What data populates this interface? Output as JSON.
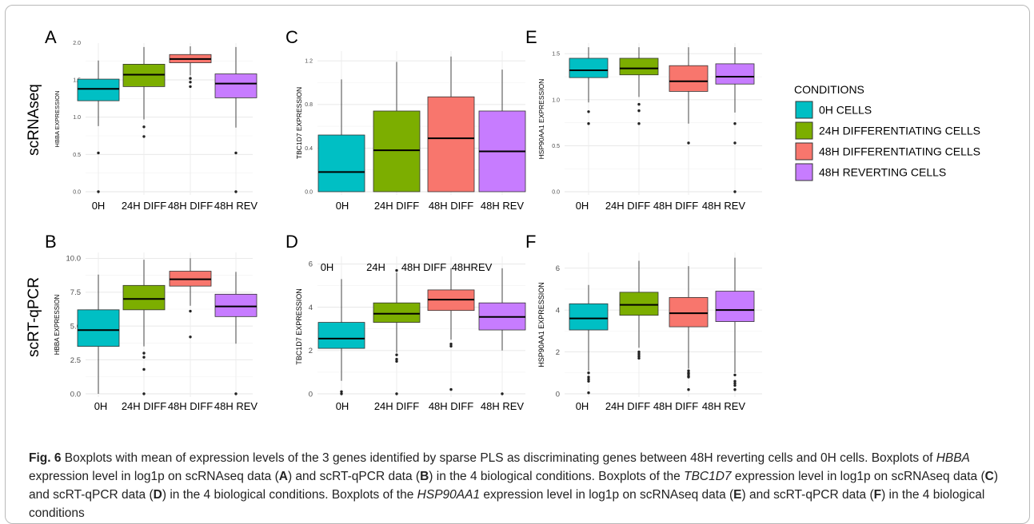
{
  "colors": {
    "0H": "#00BFC4",
    "24H": "#7CAE00",
    "48H_DIFF": "#F8766D",
    "48H_REV": "#C77CFF"
  },
  "row_labels": [
    "scRNAseq",
    "scRT-qPCR"
  ],
  "legend": {
    "title": "CONDITIONS",
    "items": [
      "0H CELLS",
      "24H DIFFERENTIATING CELLS",
      "48H DIFFERENTIATING CELLS",
      "48H REVERTING CELLS"
    ]
  },
  "chart_data": [
    {
      "type": "boxplot",
      "panel": "A",
      "ylabel": "HBBA EXPRESSION",
      "ylim": [
        0,
        1.95
      ],
      "yticks": [
        "0.0",
        "0.5",
        "1.0",
        "1.5",
        "2.0"
      ],
      "ytick_values": [
        0,
        0.5,
        1.0,
        1.5,
        2.0
      ],
      "categories": [
        "0H",
        "24H DIFF",
        "48H DIFF",
        "48H REV"
      ],
      "boxes": [
        {
          "min": 0.88,
          "q1": 1.22,
          "median": 1.38,
          "q3": 1.51,
          "max": 1.76,
          "outliers": [
            0.52,
            0.0
          ]
        },
        {
          "min": 0.97,
          "q1": 1.41,
          "median": 1.57,
          "q3": 1.71,
          "max": 1.94,
          "outliers": [
            0.87,
            0.74
          ]
        },
        {
          "min": 1.56,
          "q1": 1.73,
          "median": 1.78,
          "q3": 1.84,
          "max": 1.95,
          "outliers": [
            1.52,
            1.47,
            1.41
          ]
        },
        {
          "min": 0.86,
          "q1": 1.26,
          "median": 1.45,
          "q3": 1.58,
          "max": 1.94,
          "outliers": [
            0.52,
            0.0
          ]
        }
      ]
    },
    {
      "type": "boxplot",
      "panel": "C",
      "ylabel": "TBC1D7 EXPRESSION",
      "ylim": [
        0,
        1.26
      ],
      "yticks": [
        "0.0",
        "0.4",
        "0.8",
        "1.2"
      ],
      "ytick_values": [
        0,
        0.4,
        0.8,
        1.2
      ],
      "categories": [
        "0H",
        "24H DIFF",
        "48H DIFF",
        "48H REV"
      ],
      "boxes": [
        {
          "min": 0.0,
          "q1": 0.0,
          "median": 0.18,
          "q3": 0.52,
          "max": 1.03,
          "outliers": []
        },
        {
          "min": 0.0,
          "q1": 0.0,
          "median": 0.38,
          "q3": 0.74,
          "max": 1.19,
          "outliers": []
        },
        {
          "min": 0.0,
          "q1": 0.0,
          "median": 0.49,
          "q3": 0.87,
          "max": 1.24,
          "outliers": []
        },
        {
          "min": 0.0,
          "q1": 0.0,
          "median": 0.37,
          "q3": 0.74,
          "max": 1.12,
          "outliers": []
        }
      ]
    },
    {
      "type": "boxplot",
      "panel": "E",
      "ylabel": "HSP90AA1 EXPRESSION",
      "ylim": [
        0,
        1.58
      ],
      "yticks": [
        "0.0",
        "0.5",
        "1.0",
        "1.5"
      ],
      "ytick_values": [
        0,
        0.5,
        1.0,
        1.5
      ],
      "categories": [
        "0H",
        "24H DIFF",
        "48H DIFF",
        "48H REV"
      ],
      "boxes": [
        {
          "min": 0.97,
          "q1": 1.24,
          "median": 1.32,
          "q3": 1.45,
          "max": 1.57,
          "outliers": [
            0.87,
            0.74
          ]
        },
        {
          "min": 1.03,
          "q1": 1.27,
          "median": 1.34,
          "q3": 1.45,
          "max": 1.57,
          "outliers": [
            0.95,
            0.88,
            0.74
          ]
        },
        {
          "min": 0.74,
          "q1": 1.09,
          "median": 1.2,
          "q3": 1.37,
          "max": 1.57,
          "outliers": [
            0.53
          ]
        },
        {
          "min": 0.86,
          "q1": 1.17,
          "median": 1.25,
          "q3": 1.39,
          "max": 1.57,
          "outliers": [
            0.74,
            0.53,
            0.0
          ]
        }
      ]
    },
    {
      "type": "boxplot",
      "panel": "B",
      "ylabel": "HBBA EXPRESSION",
      "ylim": [
        0,
        10.2
      ],
      "yticks": [
        "0.0",
        "2.5",
        "5.0",
        "7.5",
        "10.0"
      ],
      "ytick_values": [
        0,
        2.5,
        5.0,
        7.5,
        10.0
      ],
      "categories": [
        "0H",
        "24H DIFF",
        "48H DIFF",
        "48H REV"
      ],
      "boxes": [
        {
          "min": 0.0,
          "q1": 3.5,
          "median": 4.7,
          "q3": 6.2,
          "max": 8.8,
          "outliers": []
        },
        {
          "min": 3.5,
          "q1": 6.2,
          "median": 7.0,
          "q3": 8.0,
          "max": 9.9,
          "outliers": [
            3.0,
            2.7,
            1.8,
            0.0
          ]
        },
        {
          "min": 6.5,
          "q1": 7.95,
          "median": 8.45,
          "q3": 9.05,
          "max": 10.0,
          "outliers": [
            6.1,
            4.2
          ]
        },
        {
          "min": 3.7,
          "q1": 5.7,
          "median": 6.45,
          "q3": 7.35,
          "max": 9.0,
          "outliers": [
            0.0
          ]
        }
      ]
    },
    {
      "type": "boxplot",
      "panel": "D",
      "ylabel": "TBC1D7 EXPRESSION",
      "ylim": [
        0,
        6.2
      ],
      "yticks": [
        "0",
        "2",
        "4",
        "6"
      ],
      "ytick_values": [
        0,
        2,
        4,
        6
      ],
      "categories": [
        "0H",
        "24H DIFF",
        "48H DIFF",
        "48H REV"
      ],
      "top_labels": [
        "0H",
        "24H",
        "48H DIFF",
        "48HREV"
      ],
      "boxes": [
        {
          "min": 0.6,
          "q1": 2.1,
          "median": 2.55,
          "q3": 3.3,
          "max": 5.3,
          "outliers": [
            0.1,
            0.0
          ]
        },
        {
          "min": 1.9,
          "q1": 3.3,
          "median": 3.7,
          "q3": 4.2,
          "max": 5.6,
          "outliers": [
            5.7,
            1.8,
            1.6,
            1.5,
            0.0
          ]
        },
        {
          "min": 2.5,
          "q1": 3.85,
          "median": 4.35,
          "q3": 4.8,
          "max": 5.8,
          "outliers": [
            2.3,
            2.2,
            0.2
          ]
        },
        {
          "min": 2.0,
          "q1": 2.95,
          "median": 3.55,
          "q3": 4.2,
          "max": 5.8,
          "outliers": [
            0.0
          ]
        }
      ]
    },
    {
      "type": "boxplot",
      "panel": "F",
      "ylabel": "HSP90AA1 EXPRESSION",
      "ylim": [
        0,
        6.6
      ],
      "yticks": [
        "0",
        "2",
        "4",
        "6"
      ],
      "ytick_values": [
        0,
        2,
        4,
        6
      ],
      "categories": [
        "0H",
        "24H DIFF",
        "48H DIFF",
        "48H REV"
      ],
      "boxes": [
        {
          "min": 1.1,
          "q1": 3.05,
          "median": 3.6,
          "q3": 4.3,
          "max": 5.2,
          "outliers": [
            1.0,
            0.8,
            0.7,
            0.6,
            0.05
          ]
        },
        {
          "min": 2.2,
          "q1": 3.75,
          "median": 4.25,
          "q3": 4.85,
          "max": 6.35,
          "outliers": [
            2.0,
            1.9,
            1.8,
            1.7
          ]
        },
        {
          "min": 1.2,
          "q1": 3.2,
          "median": 3.85,
          "q3": 4.6,
          "max": 6.1,
          "outliers": [
            1.1,
            1.0,
            0.95,
            0.85,
            0.8,
            0.2
          ]
        },
        {
          "min": 1.0,
          "q1": 3.45,
          "median": 4.0,
          "q3": 4.9,
          "max": 6.5,
          "outliers": [
            0.9,
            0.6,
            0.5,
            0.4,
            0.2
          ]
        }
      ]
    }
  ],
  "caption": {
    "fig_label": "Fig. 6",
    "parts": [
      {
        "t": "  Boxplots with mean of expression levels of the 3 genes identified by sparse PLS as discriminating genes between 48H reverting cells and 0H cells. Boxplots of ",
        "s": "n"
      },
      {
        "t": "HBBA",
        "s": "i"
      },
      {
        "t": " expression level in log1p on scRNAseq data (",
        "s": "n"
      },
      {
        "t": "A",
        "s": "b"
      },
      {
        "t": ") and scRT-qPCR data (",
        "s": "n"
      },
      {
        "t": "B",
        "s": "b"
      },
      {
        "t": ") in the 4 biological conditions. Boxplots of the ",
        "s": "n"
      },
      {
        "t": "TBC1D7",
        "s": "i"
      },
      {
        "t": " expression level in log1p on scRNAseq data (",
        "s": "n"
      },
      {
        "t": "C",
        "s": "b"
      },
      {
        "t": ") and scRT-qPCR data (",
        "s": "n"
      },
      {
        "t": "D",
        "s": "b"
      },
      {
        "t": ") in the 4 biological conditions. Boxplots of the ",
        "s": "n"
      },
      {
        "t": "HSP90AA1",
        "s": "i"
      },
      {
        "t": " expression level in log1p on scRNAseq data (",
        "s": "n"
      },
      {
        "t": "E",
        "s": "b"
      },
      {
        "t": ") and scRT-qPCR data (",
        "s": "n"
      },
      {
        "t": "F",
        "s": "b"
      },
      {
        "t": ") in the 4 biological conditions",
        "s": "n"
      }
    ]
  }
}
